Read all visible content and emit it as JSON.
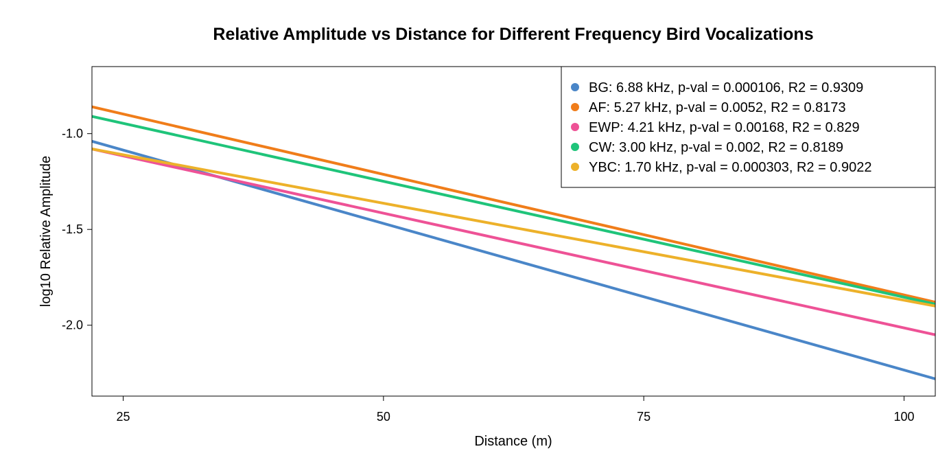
{
  "chart_data": {
    "type": "line",
    "title": "Relative Amplitude vs Distance for Different Frequency Bird Vocalizations",
    "xlabel": "Distance (m)",
    "ylabel": "log10 Relative Amplitude",
    "xlim": [
      22,
      103
    ],
    "ylim": [
      -2.37,
      -0.65
    ],
    "xticks": [
      25,
      50,
      75,
      100
    ],
    "xtick_labels": [
      "25",
      "50",
      "75",
      "100"
    ],
    "yticks": [
      -1.0,
      -1.5,
      -2.0
    ],
    "ytick_labels": [
      "-1.0",
      "-1.5",
      "-2.0"
    ],
    "grid": false,
    "legend_position": "top-right",
    "series": [
      {
        "name": "BG: 6.88 kHz, p-val = 0.000106, R2 = 0.9309",
        "color": "#4A86C8",
        "x": [
          22,
          103
        ],
        "y": [
          -1.04,
          -2.28
        ]
      },
      {
        "name": "AF: 5.27 kHz, p-val = 0.0052, R2 = 0.8173",
        "color": "#F07D1A",
        "x": [
          22,
          103
        ],
        "y": [
          -0.86,
          -1.88
        ]
      },
      {
        "name": "EWP: 4.21 kHz, p-val = 0.00168, R2 = 0.829",
        "color": "#EE5296",
        "x": [
          22,
          103
        ],
        "y": [
          -1.08,
          -2.05
        ]
      },
      {
        "name": "CW: 3.00 kHz, p-val = 0.002, R2 = 0.8189",
        "color": "#1FC47A",
        "x": [
          22,
          103
        ],
        "y": [
          -0.91,
          -1.89
        ]
      },
      {
        "name": "YBC: 1.70 kHz, p-val = 0.000303, R2 = 0.9022",
        "color": "#EDB12A",
        "x": [
          22,
          103
        ],
        "y": [
          -1.08,
          -1.9
        ]
      }
    ]
  }
}
